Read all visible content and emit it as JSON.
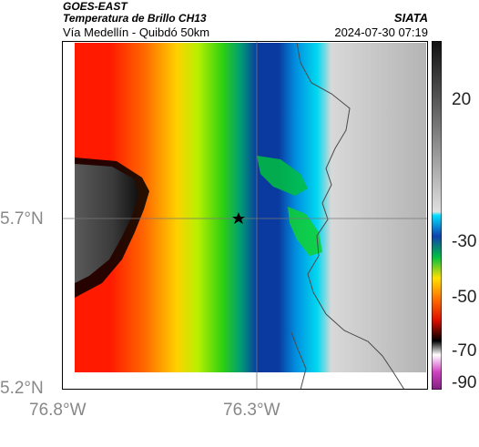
{
  "header": {
    "satellite": "GOES-EAST",
    "product": "Temperatura de Brillo CH13",
    "region": "Vía Medellín - Quibdó 50km",
    "brand": "SIATA",
    "datetime": "2024-07-30 07:19"
  },
  "axes": {
    "y_ticks": [
      "5.7°N",
      "5.2°N"
    ],
    "x_ticks": [
      "76.8°W",
      "76.3°W"
    ]
  },
  "colorbar": {
    "ticks": [
      "20",
      "-30",
      "-50",
      "-70",
      "-90"
    ]
  },
  "colors": {
    "frame": "#000000",
    "land": "#ffffff",
    "border": "#4a4a4a"
  }
}
